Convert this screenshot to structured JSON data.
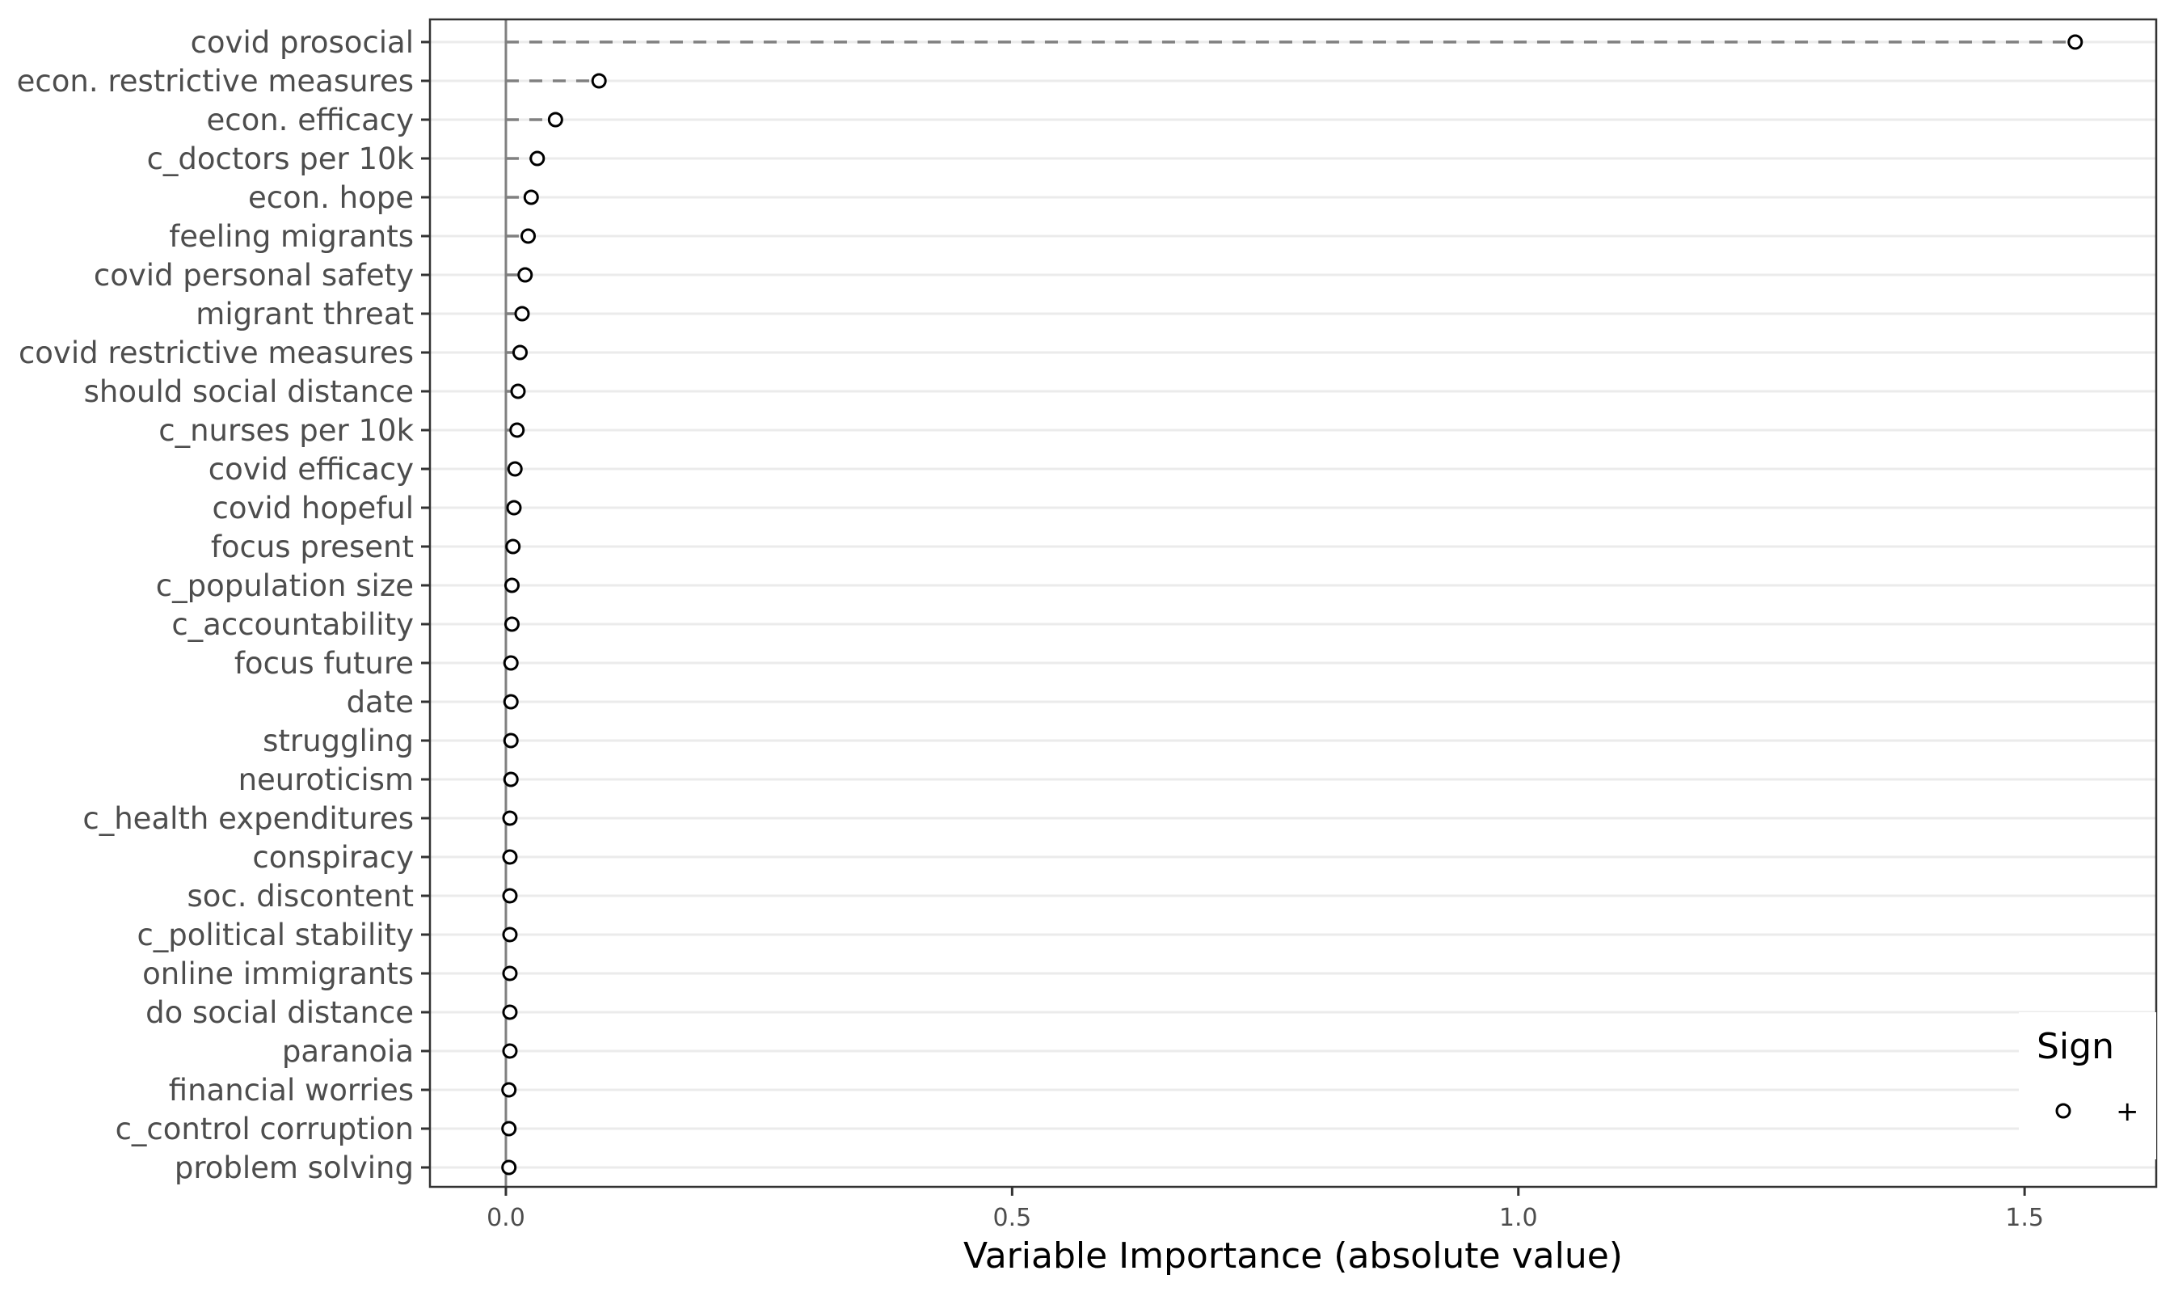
{
  "chart_data": {
    "type": "dot",
    "xlabel": "Variable Importance (absolute value)",
    "ylabel": "",
    "xlim": [
      -0.075,
      1.63
    ],
    "xticks": [
      0.0,
      0.5,
      1.0,
      1.5
    ],
    "xtick_labels": [
      "0.0",
      "0.5",
      "1.0",
      "1.5"
    ],
    "reference_line_x": 0.0,
    "grid": "horizontal major",
    "legend": {
      "title": "Sign",
      "placement": "bottom-right",
      "entries": [
        {
          "label": "+",
          "marker": "open-circle"
        }
      ]
    },
    "colors": {
      "marker_stroke": "#000000",
      "marker_fill": "#ffffff",
      "segment": "#808080",
      "grid": "#ebebeb",
      "panel_border": "#333333",
      "reference_line": "#808080"
    },
    "categories": [
      "covid prosocial",
      "econ. restrictive measures",
      "econ. efficacy",
      "c_doctors per 10k",
      "econ. hope",
      "feeling migrants",
      "covid personal safety",
      "migrant threat",
      "covid restrictive measures",
      "should social distance",
      "c_nurses per 10k",
      "covid efficacy",
      "covid hopeful",
      "focus present",
      "c_population size",
      "c_accountability",
      "focus future",
      "date",
      "struggling",
      "neuroticism",
      "c_health expenditures",
      "conspiracy",
      "soc. discontent",
      "c_political stability",
      "online immigrants",
      "do social distance",
      "paranoia",
      "financial worries",
      "c_control corruption",
      "problem solving"
    ],
    "series": [
      {
        "sign": "+",
        "values": [
          1.55,
          0.092,
          0.049,
          0.031,
          0.025,
          0.022,
          0.019,
          0.016,
          0.014,
          0.012,
          0.011,
          0.009,
          0.008,
          0.007,
          0.006,
          0.006,
          0.005,
          0.005,
          0.005,
          0.005,
          0.004,
          0.004,
          0.004,
          0.004,
          0.004,
          0.004,
          0.004,
          0.003,
          0.003,
          0.003
        ]
      }
    ]
  }
}
